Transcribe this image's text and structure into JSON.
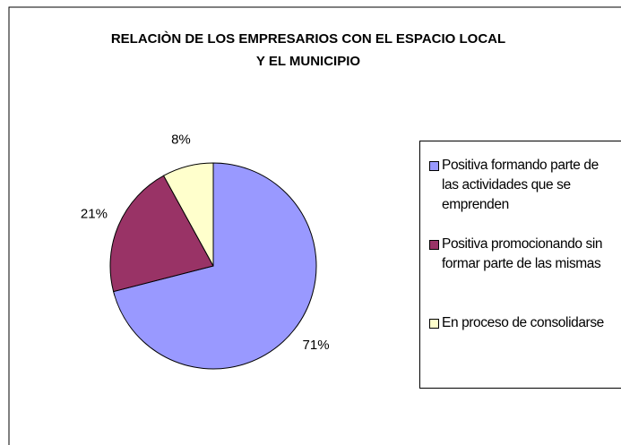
{
  "chart_data": {
    "type": "pie",
    "title": [
      "RELACIÒN DE LOS EMPRESARIOS CON EL ESPACIO LOCAL",
      "Y EL MUNICIPIO"
    ],
    "categories": [
      "Positiva formando parte de las actividades que se emprenden",
      "Positiva promocionando sin formar parte de las mismas",
      "En proceso de consolidarse"
    ],
    "values": [
      71,
      21,
      8
    ],
    "value_labels": [
      "71%",
      "21%",
      "8%"
    ],
    "colors": [
      "#9999ff",
      "#993366",
      "#ffffcc"
    ],
    "legend": "right"
  }
}
